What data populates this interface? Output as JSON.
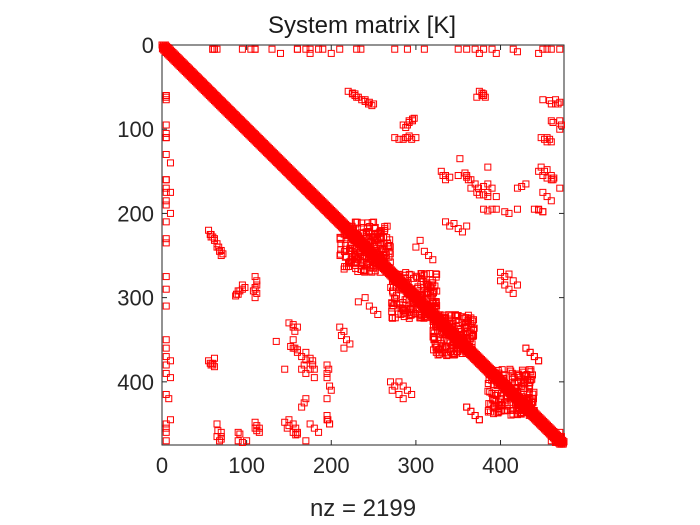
{
  "chart_data": {
    "type": "scatter",
    "plot_kind": "spy",
    "title": "System matrix [K]",
    "xlabel": "nz = 2199",
    "ylabel": "",
    "matrix_size": 475,
    "xlim": [
      0,
      475
    ],
    "ylim": [
      475,
      0
    ],
    "x_ticks": [
      "0",
      "100",
      "200",
      "300",
      "400"
    ],
    "y_ticks": [
      "0",
      "100",
      "200",
      "300",
      "400"
    ],
    "x_tick_values": [
      0,
      100,
      200,
      300,
      400
    ],
    "y_tick_values": [
      0,
      100,
      200,
      300,
      400
    ],
    "marker": "square-open",
    "marker_color": "#ff0000",
    "grid": false,
    "diagonal_band": {
      "from": 0,
      "to": 475,
      "halfwidth": 4
    },
    "block_clusters": [
      {
        "rows": [
          210,
          270
        ],
        "cols": [
          210,
          270
        ]
      },
      {
        "rows": [
          270,
          325
        ],
        "cols": [
          270,
          325
        ]
      },
      {
        "rows": [
          320,
          370
        ],
        "cols": [
          320,
          370
        ]
      },
      {
        "rows": [
          385,
          440
        ],
        "cols": [
          385,
          440
        ]
      }
    ],
    "offdiagonal_points": [
      [
        60,
        5
      ],
      [
        62,
        5
      ],
      [
        105,
        5
      ],
      [
        110,
        5
      ],
      [
        130,
        5
      ],
      [
        160,
        5
      ],
      [
        175,
        5
      ],
      [
        190,
        5
      ],
      [
        210,
        5
      ],
      [
        230,
        5
      ],
      [
        275,
        5
      ],
      [
        310,
        5
      ],
      [
        350,
        5
      ],
      [
        360,
        5
      ],
      [
        390,
        5
      ],
      [
        415,
        5
      ],
      [
        450,
        5
      ],
      [
        460,
        5
      ],
      [
        225,
        57
      ],
      [
        228,
        58
      ],
      [
        232,
        62
      ],
      [
        236,
        65
      ],
      [
        240,
        67
      ],
      [
        244,
        70
      ],
      [
        248,
        72
      ],
      [
        378,
        57
      ],
      [
        380,
        60
      ],
      [
        382,
        62
      ],
      [
        450,
        65
      ],
      [
        458,
        66
      ],
      [
        460,
        70
      ],
      [
        465,
        70
      ],
      [
        290,
        95
      ],
      [
        292,
        90
      ],
      [
        296,
        88
      ],
      [
        298,
        87
      ],
      [
        285,
        112
      ],
      [
        288,
        110
      ],
      [
        292,
        108
      ],
      [
        300,
        110
      ],
      [
        460,
        90
      ],
      [
        462,
        92
      ],
      [
        448,
        110
      ],
      [
        452,
        112
      ],
      [
        455,
        115
      ],
      [
        335,
        155
      ],
      [
        340,
        157
      ],
      [
        350,
        155
      ],
      [
        360,
        157
      ],
      [
        365,
        160
      ],
      [
        370,
        165
      ],
      [
        374,
        170
      ],
      [
        380,
        168
      ],
      [
        385,
        165
      ],
      [
        375,
        178
      ],
      [
        385,
        180
      ],
      [
        395,
        180
      ],
      [
        420,
        170
      ],
      [
        425,
        168
      ],
      [
        430,
        165
      ],
      [
        448,
        145
      ],
      [
        452,
        150
      ],
      [
        455,
        148
      ],
      [
        460,
        155
      ],
      [
        462,
        160
      ],
      [
        463,
        158
      ],
      [
        440,
        195
      ],
      [
        445,
        196
      ],
      [
        450,
        198
      ],
      [
        420,
        195
      ],
      [
        405,
        198
      ],
      [
        410,
        200
      ],
      [
        5,
        60
      ],
      [
        5,
        65
      ],
      [
        5,
        95
      ],
      [
        5,
        110
      ],
      [
        10,
        140
      ],
      [
        5,
        160
      ],
      [
        5,
        170
      ],
      [
        10,
        175
      ],
      [
        5,
        185
      ],
      [
        10,
        200
      ],
      [
        5,
        235
      ],
      [
        5,
        290
      ],
      [
        55,
        220
      ],
      [
        58,
        225
      ],
      [
        60,
        228
      ],
      [
        62,
        230
      ],
      [
        65,
        240
      ],
      [
        68,
        245
      ],
      [
        70,
        250
      ],
      [
        95,
        285
      ],
      [
        98,
        288
      ],
      [
        92,
        292
      ],
      [
        90,
        296
      ],
      [
        110,
        275
      ],
      [
        112,
        280
      ],
      [
        110,
        290
      ],
      [
        112,
        295
      ],
      [
        150,
        330
      ],
      [
        155,
        332
      ],
      [
        160,
        335
      ],
      [
        135,
        352
      ],
      [
        152,
        358
      ],
      [
        155,
        360
      ],
      [
        160,
        362
      ],
      [
        170,
        365
      ],
      [
        175,
        372
      ],
      [
        178,
        380
      ],
      [
        175,
        385
      ],
      [
        170,
        390
      ],
      [
        145,
        385
      ],
      [
        5,
        370
      ],
      [
        10,
        375
      ],
      [
        5,
        380
      ],
      [
        55,
        375
      ],
      [
        58,
        380
      ],
      [
        60,
        378
      ],
      [
        62,
        372
      ],
      [
        195,
        380
      ],
      [
        197,
        385
      ],
      [
        195,
        390
      ],
      [
        195,
        395
      ],
      [
        10,
        395
      ],
      [
        8,
        420
      ],
      [
        10,
        445
      ],
      [
        5,
        455
      ],
      [
        5,
        470
      ],
      [
        65,
        465
      ],
      [
        68,
        470
      ],
      [
        70,
        468
      ],
      [
        90,
        470
      ],
      [
        95,
        472
      ],
      [
        100,
        470
      ],
      [
        110,
        455
      ],
      [
        112,
        458
      ],
      [
        115,
        460
      ],
      [
        150,
        445
      ],
      [
        155,
        450
      ],
      [
        158,
        455
      ],
      [
        160,
        460
      ],
      [
        175,
        450
      ],
      [
        180,
        455
      ],
      [
        185,
        460
      ],
      [
        170,
        470
      ],
      [
        195,
        445
      ],
      [
        198,
        450
      ],
      [
        335,
        210
      ],
      [
        340,
        215
      ],
      [
        345,
        212
      ],
      [
        350,
        218
      ],
      [
        355,
        222
      ],
      [
        360,
        215
      ],
      [
        232,
        305
      ],
      [
        240,
        300
      ],
      [
        245,
        310
      ],
      [
        250,
        315
      ],
      [
        255,
        320
      ],
      [
        400,
        270
      ],
      [
        405,
        275
      ],
      [
        410,
        272
      ],
      [
        415,
        280
      ],
      [
        420,
        285
      ],
      [
        280,
        400
      ],
      [
        285,
        405
      ],
      [
        290,
        410
      ],
      [
        295,
        415
      ],
      [
        360,
        430
      ],
      [
        365,
        435
      ],
      [
        370,
        440
      ],
      [
        375,
        445
      ],
      [
        430,
        360
      ],
      [
        435,
        365
      ],
      [
        440,
        370
      ],
      [
        445,
        375
      ],
      [
        470,
        460
      ],
      [
        472,
        465
      ],
      [
        465,
        470
      ]
    ]
  }
}
